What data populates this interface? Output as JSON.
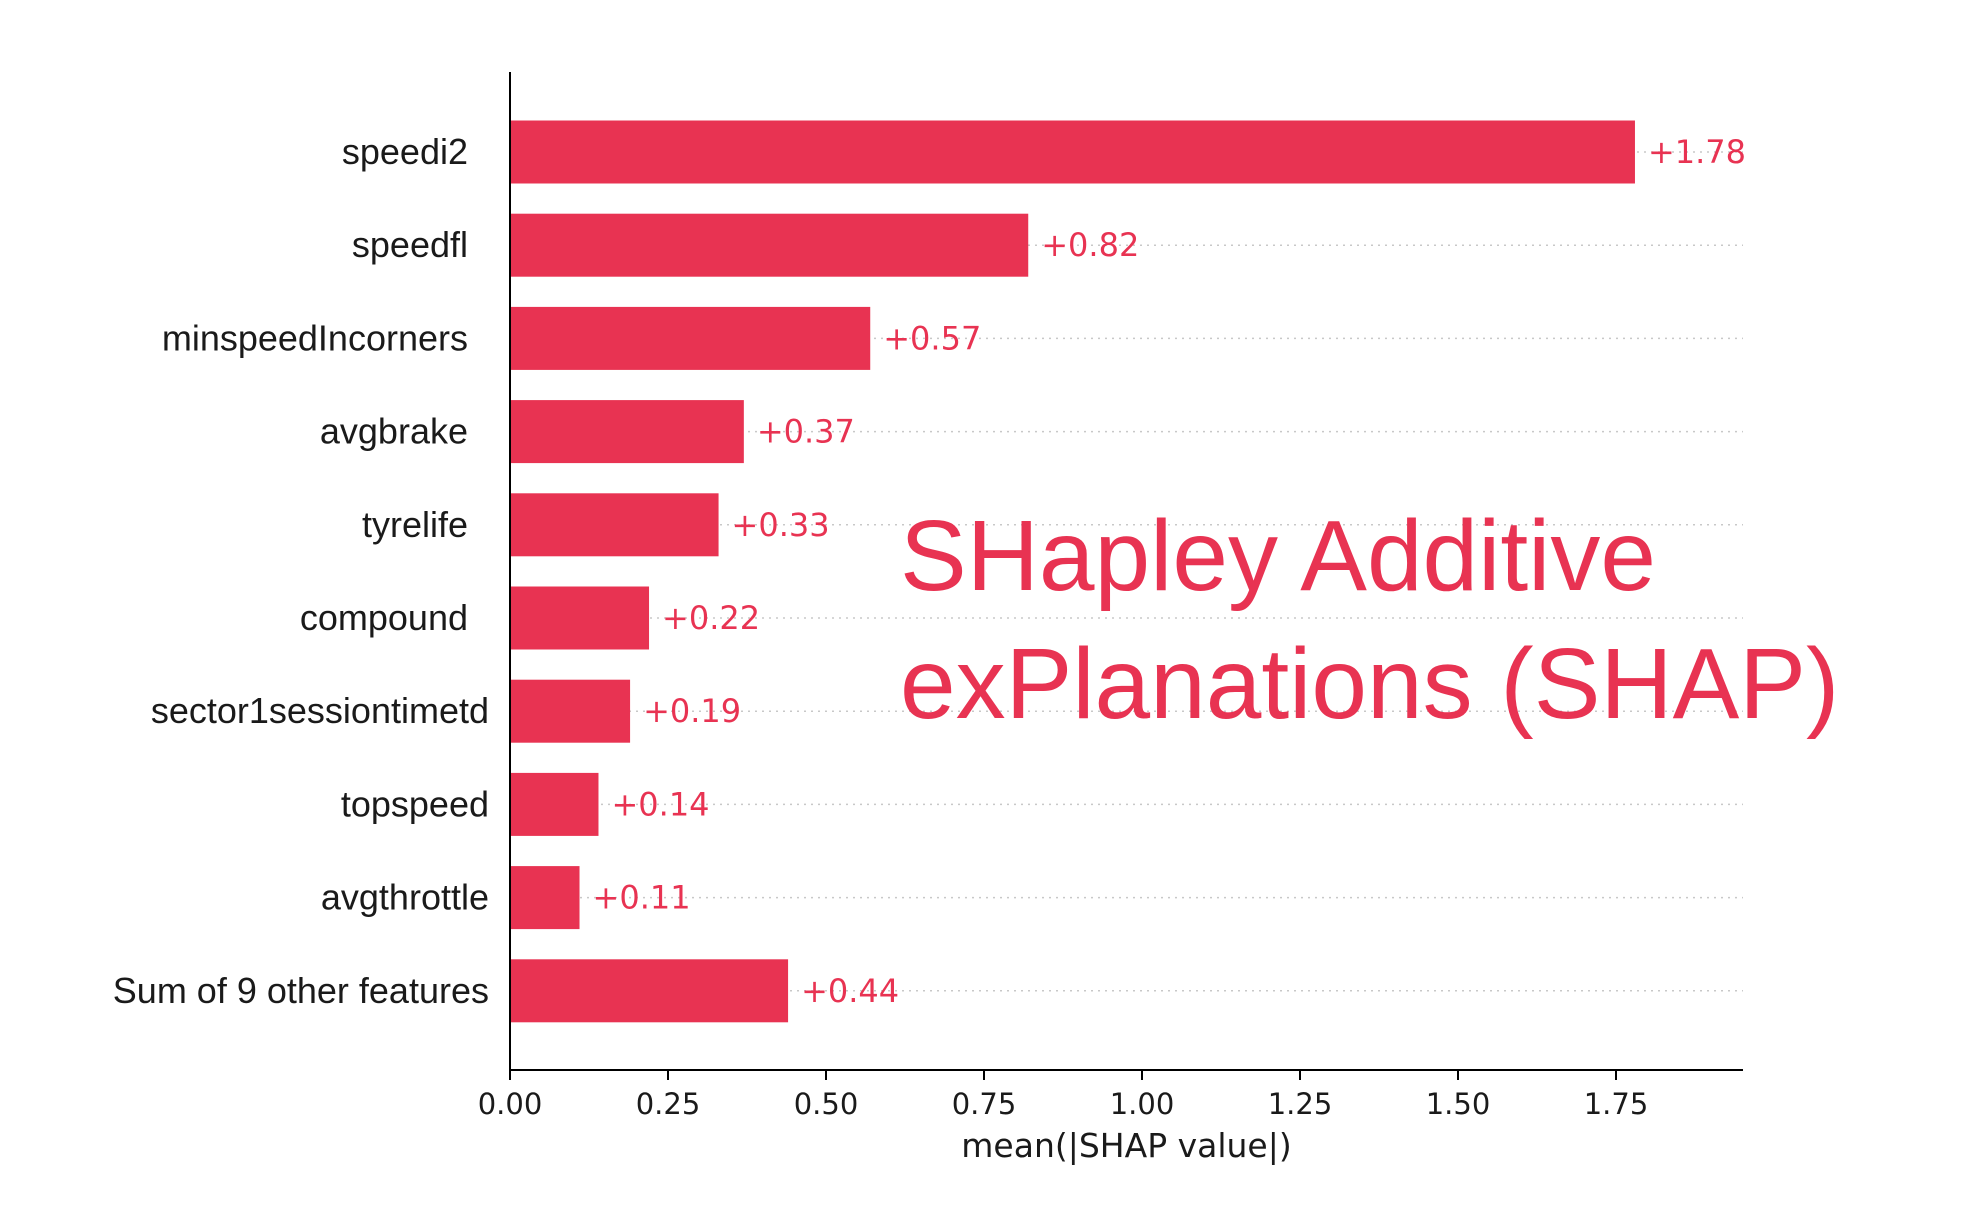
{
  "chart_data": {
    "type": "bar",
    "orientation": "horizontal",
    "categories": [
      "speedi2",
      "speedfl",
      "minspeedIncorners",
      "avgbrake",
      "tyrelife",
      "compound",
      "sector1sessiontimetd",
      "topspeed",
      "avgthrottle",
      "Sum of 9 other features"
    ],
    "values": [
      1.78,
      0.82,
      0.57,
      0.37,
      0.33,
      0.22,
      0.19,
      0.14,
      0.11,
      0.44
    ],
    "value_labels": [
      "+1.78",
      "+0.82",
      "+0.57",
      "+0.37",
      "+0.33",
      "+0.22",
      "+0.19",
      "+0.14",
      "+0.11",
      "+0.44"
    ],
    "xlabel": "mean(|SHAP value|)",
    "xticks": [
      "0.00",
      "0.25",
      "0.50",
      "0.75",
      "1.00",
      "1.25",
      "1.50",
      "1.75"
    ],
    "xlim": [
      0,
      1.96
    ],
    "grid": "dotted horizontal guide per bar",
    "bar_color": "#e83352",
    "value_label_color": "#e83352",
    "annotation": {
      "lines": [
        "SHapley Additive",
        "exPlanations (SHAP)"
      ],
      "color": "#e83352"
    }
  }
}
